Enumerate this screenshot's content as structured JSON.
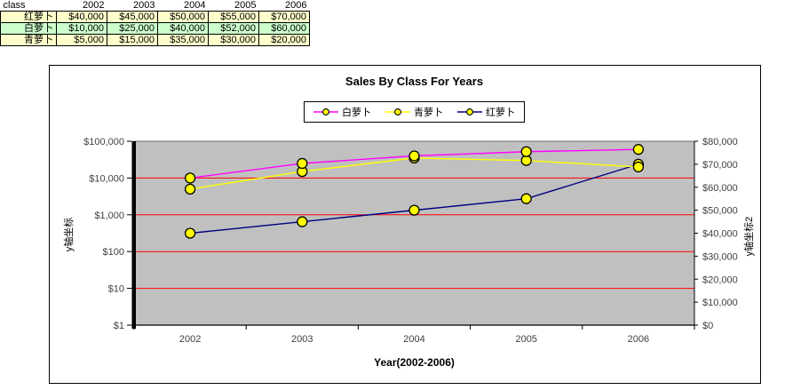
{
  "table": {
    "header": [
      "class",
      "2002",
      "2003",
      "2004",
      "2005",
      "2006"
    ],
    "rows": [
      {
        "label": "红萝卜",
        "bg": "#FFFFCC",
        "values": [
          "$40,000",
          "$45,000",
          "$50,000",
          "$55,000",
          "$70,000"
        ]
      },
      {
        "label": "白萝卜",
        "bg": "#CCFFCC",
        "values": [
          "$10,000",
          "$25,000",
          "$40,000",
          "$52,000",
          "$60,000"
        ]
      },
      {
        "label": "青萝卜",
        "bg": "#FFFFCC",
        "values": [
          "$5,000",
          "$15,000",
          "$35,000",
          "$30,000",
          "$20,000"
        ]
      }
    ]
  },
  "chart_data": {
    "type": "line",
    "title": "Sales By Class For Years",
    "categories": [
      "2002",
      "2003",
      "2004",
      "2005",
      "2006"
    ],
    "series": [
      {
        "name": "白萝卜",
        "color": "#FF00FF",
        "axis": "left",
        "values": [
          10000,
          25000,
          40000,
          52000,
          60000
        ]
      },
      {
        "name": "青萝卜",
        "color": "#FFFF00",
        "axis": "left",
        "values": [
          5000,
          15000,
          35000,
          30000,
          20000
        ]
      },
      {
        "name": "红萝卜",
        "color": "#000080",
        "axis": "right",
        "values": [
          40000,
          45000,
          50000,
          55000,
          70000
        ]
      }
    ],
    "legend": {
      "position": "top",
      "entries": [
        "白萝卜",
        "青萝卜",
        "红萝卜"
      ]
    },
    "x_axis": {
      "title": "Year(2002-2006)",
      "tick_labels": [
        "2002",
        "2003",
        "2004",
        "2005",
        "2006"
      ]
    },
    "left_axis": {
      "title": "y轴坐标",
      "scale": "log",
      "min": 1,
      "max": 100000,
      "tick_labels": [
        "$1",
        "$10",
        "$100",
        "$1,000",
        "$10,000",
        "$100,000"
      ]
    },
    "right_axis": {
      "title": "y轴坐标2",
      "scale": "linear",
      "min": 0,
      "max": 80000,
      "tick_labels": [
        "$0",
        "$10,000",
        "$20,000",
        "$30,000",
        "$40,000",
        "$50,000",
        "$60,000",
        "$70,000",
        "$80,000"
      ]
    },
    "gridlines": {
      "color": "#FF0000",
      "left_values": [
        10,
        100,
        1000,
        10000
      ]
    },
    "plot_bg": "#C0C0C0",
    "marker": {
      "fill": "#FFFF00",
      "stroke": "#000000"
    }
  }
}
